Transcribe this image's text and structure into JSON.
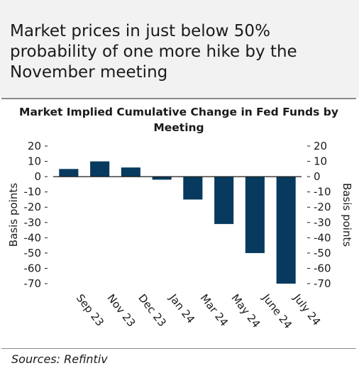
{
  "headline": "Market prices in just below 50% probability of one more hike by the November meeting",
  "source": "Sources: Refintiv",
  "colors": {
    "bar": "#073a5e",
    "header_bg": "#f2f2f2",
    "rule": "#8a8a8a"
  },
  "chart_data": {
    "type": "bar",
    "title": "Market Implied Cumulative Change in Fed Funds by Meeting",
    "ylabel": "Basis points",
    "ylabel_right": "Basis points",
    "categories": [
      "Sep 23",
      "Nov 23",
      "Dec 23",
      "Jan 24",
      "Mar 24",
      "May 24",
      "June 24",
      "July 24"
    ],
    "values": [
      5,
      10,
      6,
      -2,
      -15,
      -31,
      -50,
      -70
    ],
    "ylim": [
      -70,
      20
    ],
    "yticks": [
      20,
      10,
      0,
      -10,
      -20,
      -30,
      -40,
      -50,
      -60,
      -70
    ],
    "grid": false,
    "legend": "none"
  }
}
